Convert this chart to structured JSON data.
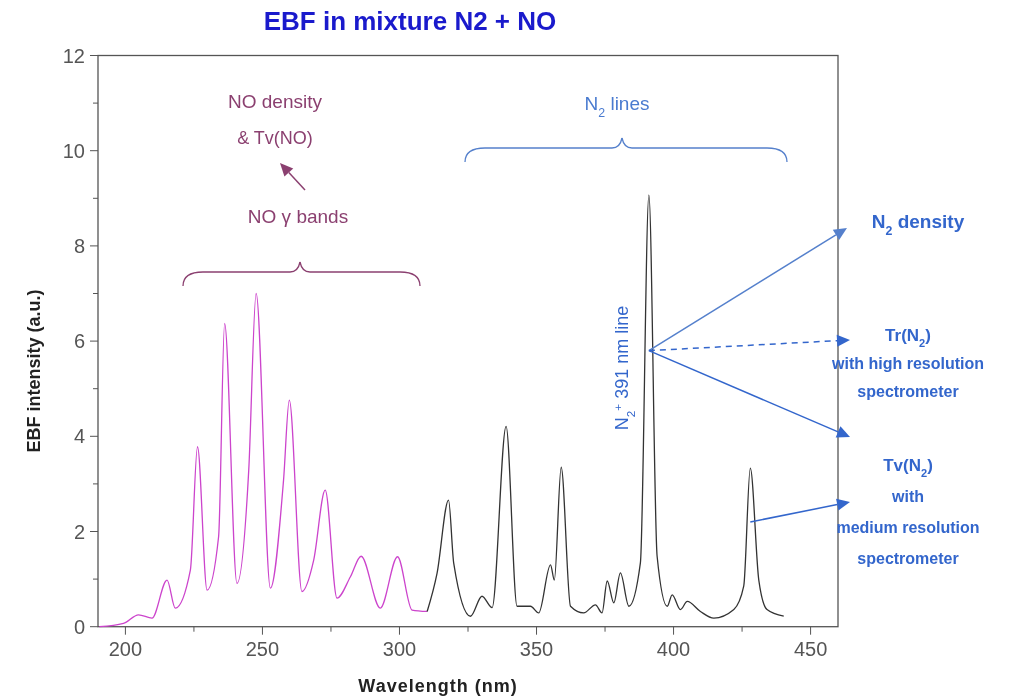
{
  "chart_data": {
    "type": "line",
    "title": "EBF in mixture N2 + NO",
    "xlabel": "Wavelength (nm)",
    "ylabel": "EBF intensity (a.u.)",
    "xlim": [
      190,
      460
    ],
    "ylim": [
      0,
      12
    ],
    "xticks": [
      200,
      {
        "value": 225,
        "label": null
      },
      250,
      {
        "value": 275,
        "label": null
      },
      300,
      {
        "value": 325,
        "label": null
      },
      350,
      {
        "value": 375,
        "label": null
      },
      400,
      {
        "value": 425,
        "label": null
      },
      450
    ],
    "yticks": [
      0,
      {
        "value": 1,
        "label": null
      },
      2,
      {
        "value": 3,
        "label": null
      },
      4,
      {
        "value": 5,
        "label": null
      },
      6,
      {
        "value": 7,
        "label": null
      },
      8,
      {
        "value": 9,
        "label": null
      },
      10,
      {
        "value": 11,
        "label": null
      },
      12
    ],
    "series": [
      {
        "color": "#cc44cc",
        "x": [
          190.5,
          199.3,
          204.8,
          209.7,
          215.2,
          218.2,
          223.7,
          226.3,
          229.8,
          234,
          236.2,
          240.7,
          245,
          247.7,
          252.9,
          257.7,
          259.8,
          264.4,
          268.7,
          272.9,
          277.2,
          282.1,
          286,
          293,
          299.3,
          304.6,
          310.1
        ],
        "values": [
          0,
          0.07,
          0.25,
          0.18,
          0.98,
          0.39,
          1.19,
          3.78,
          0.77,
          1.89,
          6.37,
          0.91,
          3.29,
          7.0,
          0.81,
          3.08,
          4.76,
          0.74,
          1.4,
          2.87,
          0.6,
          1.05,
          1.48,
          0.39,
          1.47,
          0.35,
          0.32
        ]
      },
      {
        "color": "#333333",
        "x": [
          310.1,
          313.7,
          317.9,
          319.8,
          325.9,
          330.1,
          333.8,
          338.9,
          342.9,
          347.8,
          350.8,
          355.1,
          356.5,
          359,
          362.4,
          367.2,
          371.5,
          373.9,
          375.8,
          378.2,
          380.6,
          383.7,
          387.9,
          391,
          394,
          397.7,
          399.5,
          402.5,
          405,
          409.8,
          414.7,
          422,
          425.6,
          428,
          431.1,
          434.1,
          440.2
        ],
        "values": [
          0.32,
          1.12,
          2.66,
          1.33,
          0.22,
          0.64,
          0.4,
          4.21,
          0.43,
          0.43,
          0.29,
          1.3,
          0.98,
          3.35,
          0.43,
          0.29,
          0.46,
          0.29,
          0.96,
          0.5,
          1.13,
          0.43,
          1.34,
          9.07,
          1.48,
          0.43,
          0.67,
          0.36,
          0.53,
          0.32,
          0.18,
          0.36,
          0.85,
          3.33,
          0.98,
          0.36,
          0.22
        ]
      }
    ],
    "annotations": [
      "NO density\n& Tv(NO)",
      "NO γ bands",
      "N$_{2}$ lines",
      "N$_{2}$$^{+}$  391 nm line",
      "N$_{2}$ density",
      "Tr(N$_{2}$)\nwith high resolution\nspectrometer",
      {
        "text": "Tv(N$_{2}$)\nwith\nmedium resolution\nspectrometer",
        "x": 428,
        "y": 2.2
      }
    ]
  }
}
